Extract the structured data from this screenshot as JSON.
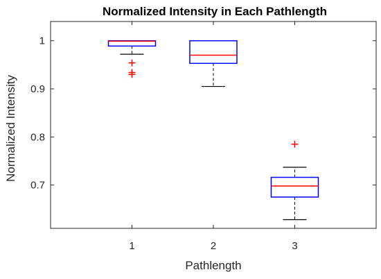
{
  "chart_data": {
    "type": "boxplot",
    "title": "Normalized Intensity in Each Pathlength",
    "xlabel": "Pathlength",
    "ylabel": "Normalized Intensity",
    "categories": [
      "1",
      "2",
      "3"
    ],
    "ylim": [
      0.61,
      1.04
    ],
    "yticks": [
      0.7,
      0.8,
      0.9,
      1
    ],
    "ytick_labels": [
      "0.7",
      "0.8",
      "0.9",
      "1"
    ],
    "grid": false,
    "colors": {
      "box": "#0000ff",
      "median": "#ff0000",
      "whisker": "#000000",
      "outlier": "#ff0000",
      "axis": "#262626"
    },
    "boxes": [
      {
        "category": "1",
        "min": 0.972,
        "q1": 0.989,
        "median": 0.999,
        "q3": 1.0,
        "max": 1.0,
        "outliers": [
          0.954,
          0.934,
          0.93
        ]
      },
      {
        "category": "2",
        "min": 0.905,
        "q1": 0.953,
        "median": 0.97,
        "q3": 1.0,
        "max": 1.0,
        "outliers": []
      },
      {
        "category": "3",
        "min": 0.628,
        "q1": 0.675,
        "median": 0.698,
        "q3": 0.716,
        "max": 0.737,
        "outliers": [
          0.785
        ]
      }
    ]
  }
}
